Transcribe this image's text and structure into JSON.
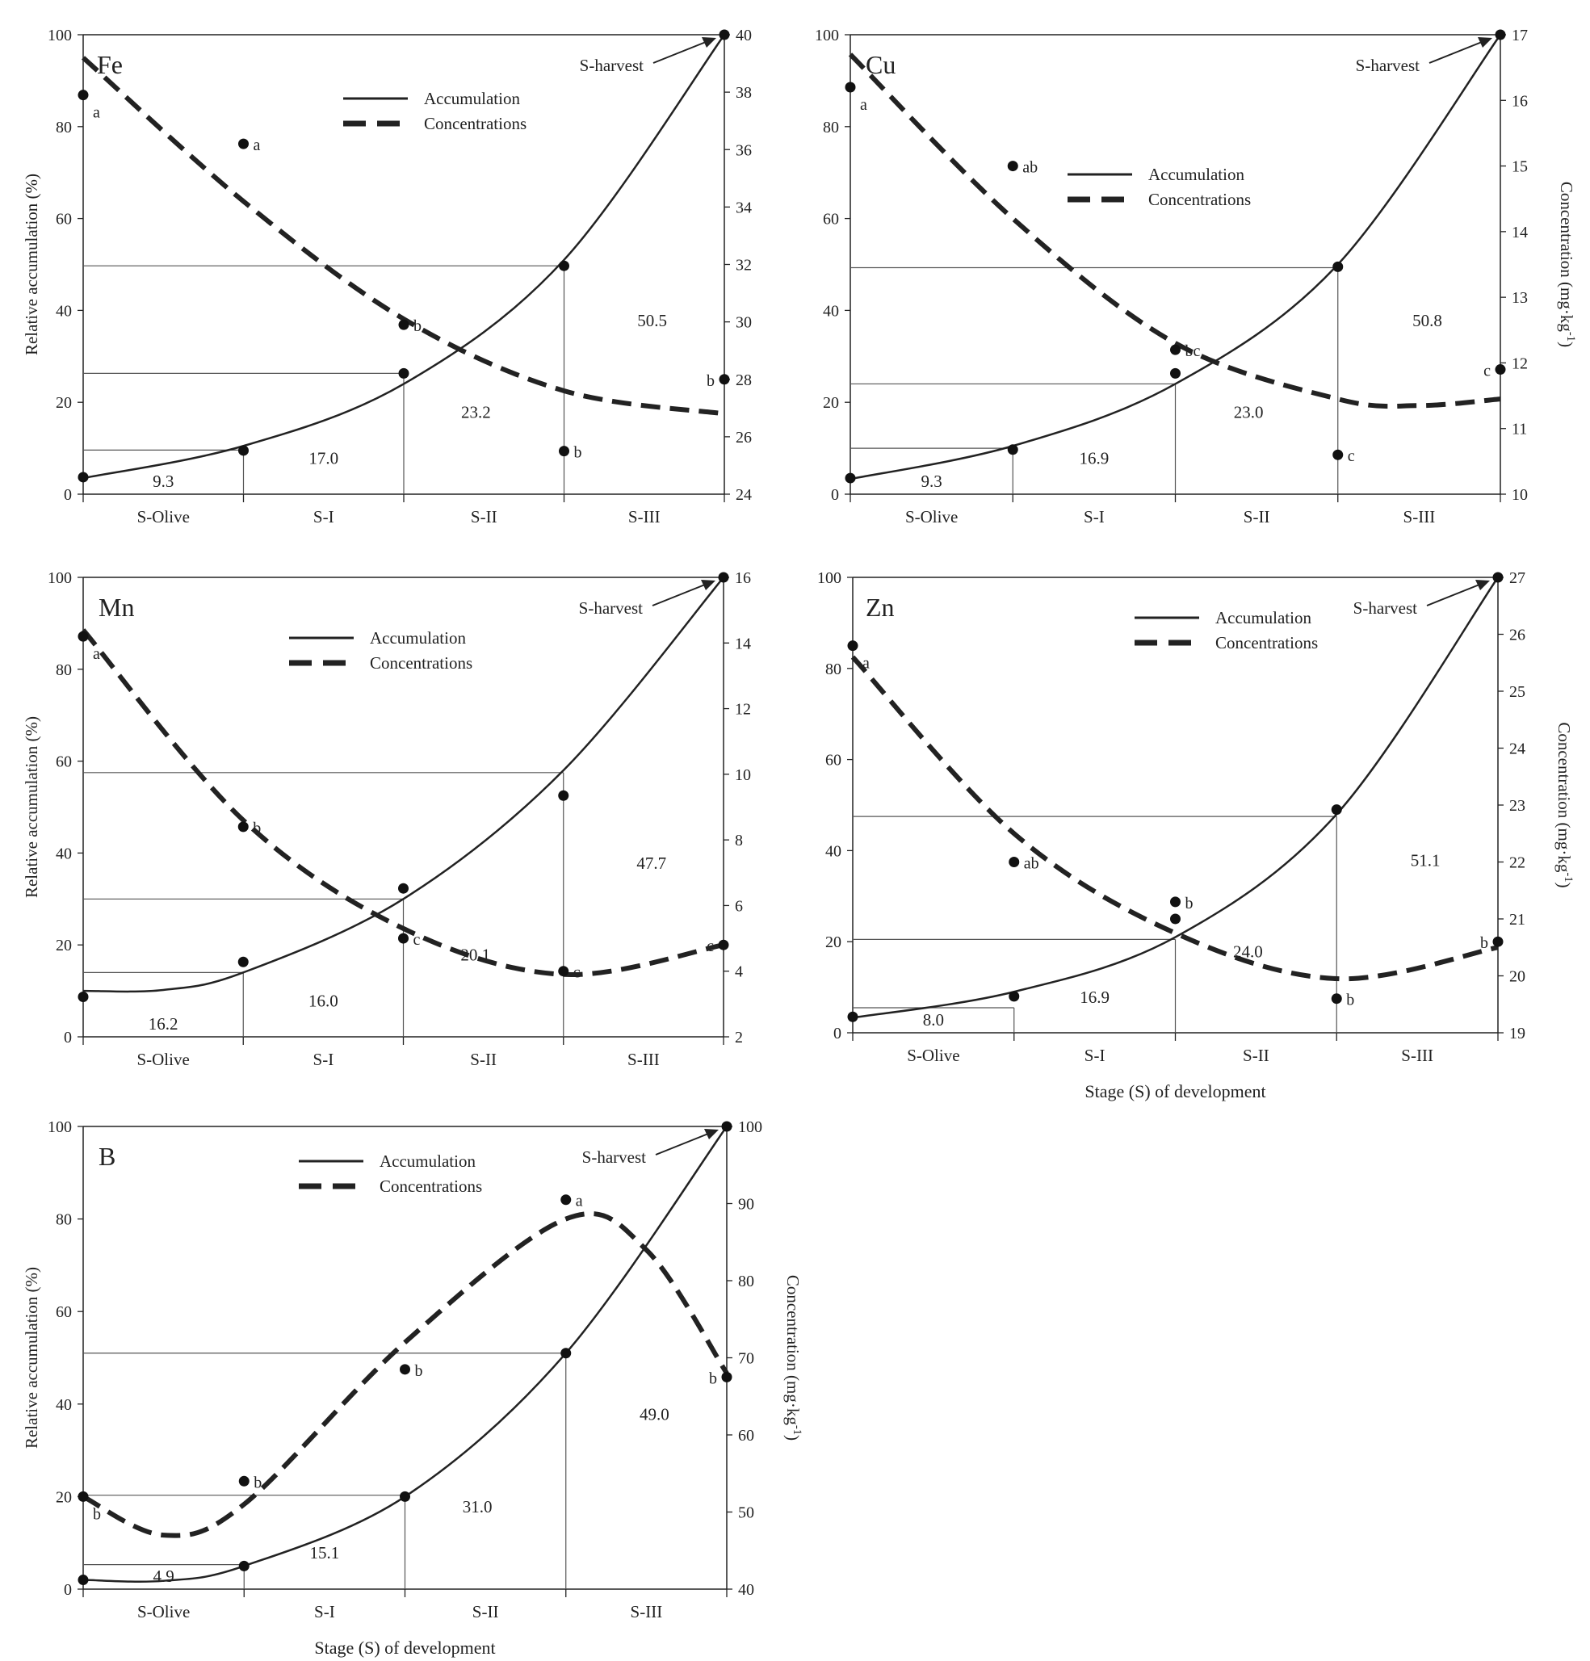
{
  "chart_data": [
    {
      "type": "line",
      "title": "Fe",
      "ylabel": "Relative accumulation (%)",
      "ylabel_right": "",
      "xlabel": "",
      "ylim": [
        0,
        100
      ],
      "ylim_right": [
        24,
        40
      ],
      "yticks": [
        0,
        20,
        40,
        60,
        80,
        100
      ],
      "yticks_right": [
        24,
        26,
        28,
        30,
        32,
        34,
        36,
        38,
        40
      ],
      "x_categories": [
        "S-Olive",
        "S-I",
        "S-II",
        "S-III"
      ],
      "legend": [
        "Accumulation",
        "Concentrations"
      ],
      "annotation": "S-harvest",
      "accumulation_points": [
        3.7,
        9.5,
        26.3,
        49.7,
        100
      ],
      "accumulation_curve": [
        [
          0,
          3.5
        ],
        [
          1,
          10.5
        ],
        [
          2,
          24
        ],
        [
          3,
          51
        ],
        [
          4,
          100
        ]
      ],
      "cumulative_lines": [
        9.6,
        26.3,
        49.7
      ],
      "segment_values": [
        "9.3",
        "17.0",
        "23.2",
        "50.5"
      ],
      "concentration_points": [
        37.9,
        36.2,
        29.9,
        25.5,
        28.0
      ],
      "concentration_letters": [
        "a",
        "a",
        "b",
        "b",
        "b"
      ],
      "concentration_curve": [
        [
          0,
          39.2
        ],
        [
          1,
          34.2
        ],
        [
          2,
          30.1
        ],
        [
          3,
          27.6
        ],
        [
          4,
          26.8
        ]
      ]
    },
    {
      "type": "line",
      "title": "Cu",
      "ylabel": "",
      "ylabel_right": "Concentration (mg·kg-1)",
      "xlabel": "",
      "ylim": [
        0,
        100
      ],
      "ylim_right": [
        10,
        17
      ],
      "yticks": [
        0,
        20,
        40,
        60,
        80,
        100
      ],
      "yticks_right": [
        10,
        11,
        12,
        13,
        14,
        15,
        16,
        17
      ],
      "x_categories": [
        "S-Olive",
        "S-I",
        "S-II",
        "S-III"
      ],
      "legend": [
        "Accumulation",
        "Concentrations"
      ],
      "annotation": "S-harvest",
      "accumulation_points": [
        3.5,
        9.7,
        26.3,
        49.5,
        100
      ],
      "accumulation_curve": [
        [
          0,
          3.3
        ],
        [
          1,
          10.5
        ],
        [
          2,
          24
        ],
        [
          3,
          50
        ],
        [
          4,
          100
        ]
      ],
      "cumulative_lines": [
        10.0,
        24.0,
        49.3
      ],
      "segment_values": [
        "9.3",
        "16.9",
        "23.0",
        "50.8"
      ],
      "concentration_points": [
        16.2,
        15.0,
        12.2,
        10.6,
        11.9
      ],
      "concentration_letters": [
        "a",
        "ab",
        "bc",
        "c",
        "c"
      ],
      "concentration_curve": [
        [
          0,
          16.7
        ],
        [
          1,
          14.2
        ],
        [
          2,
          12.3
        ],
        [
          3,
          11.45
        ],
        [
          3.5,
          11.35
        ],
        [
          4,
          11.45
        ]
      ]
    },
    {
      "type": "line",
      "title": "Mn",
      "ylabel": "Relative accumulation (%)",
      "ylabel_right": "",
      "xlabel": "",
      "ylim": [
        0,
        100
      ],
      "ylim_right": [
        2,
        16
      ],
      "yticks": [
        0,
        20,
        40,
        60,
        80,
        100
      ],
      "yticks_right": [
        2,
        4,
        6,
        8,
        10,
        12,
        14,
        16
      ],
      "x_categories": [
        "S-Olive",
        "S-I",
        "S-II",
        "S-III"
      ],
      "legend": [
        "Accumulation",
        "Concentrations"
      ],
      "annotation": "S-harvest",
      "accumulation_points": [
        8.7,
        16.3,
        32.3,
        52.5,
        100
      ],
      "accumulation_curve": [
        [
          0,
          10
        ],
        [
          0.5,
          10.2
        ],
        [
          1,
          14
        ],
        [
          2,
          30
        ],
        [
          3,
          58
        ],
        [
          4,
          100
        ]
      ],
      "cumulative_lines": [
        14.0,
        30.0,
        57.5
      ],
      "segment_values": [
        "16.2",
        "16.0",
        "20.1",
        "47.7"
      ],
      "concentration_points": [
        14.2,
        8.4,
        5.0,
        4.0,
        4.8
      ],
      "concentration_letters": [
        "a",
        "b",
        "c",
        "c",
        "c"
      ],
      "concentration_curve": [
        [
          0,
          14.4
        ],
        [
          1,
          8.6
        ],
        [
          2,
          5.3
        ],
        [
          3,
          3.9
        ],
        [
          4,
          4.8
        ]
      ]
    },
    {
      "type": "line",
      "title": "Zn",
      "ylabel": "",
      "ylabel_right": "Concentration (mg·kg-1)",
      "xlabel": "Stage (S) of development",
      "ylim": [
        0,
        100
      ],
      "ylim_right": [
        19,
        27
      ],
      "yticks": [
        0,
        20,
        40,
        60,
        80,
        100
      ],
      "yticks_right": [
        19,
        20,
        21,
        22,
        23,
        24,
        25,
        26,
        27
      ],
      "x_categories": [
        "S-Olive",
        "S-I",
        "S-II",
        "S-III"
      ],
      "legend": [
        "Accumulation",
        "Concentrations"
      ],
      "annotation": "S-harvest",
      "accumulation_points": [
        3.5,
        8.0,
        25.0,
        49.0,
        100
      ],
      "accumulation_curve": [
        [
          0,
          3.3
        ],
        [
          1,
          9
        ],
        [
          2,
          21
        ],
        [
          3,
          48
        ],
        [
          4,
          100
        ]
      ],
      "cumulative_lines": [
        5.5,
        20.5,
        47.5
      ],
      "segment_values": [
        "8.0",
        "16.9",
        "24.0",
        "51.1"
      ],
      "concentration_points": [
        25.8,
        22.0,
        21.3,
        19.6,
        20.6
      ],
      "concentration_letters": [
        "a",
        "ab",
        "b",
        "b",
        "b"
      ],
      "concentration_curve": [
        [
          0,
          25.6
        ],
        [
          1,
          22.5
        ],
        [
          2,
          20.75
        ],
        [
          3,
          19.95
        ],
        [
          4,
          20.5
        ]
      ]
    },
    {
      "type": "line",
      "title": "B",
      "ylabel": "Relative accumulation (%)",
      "ylabel_right": "Concentration (mg·kg-1)",
      "xlabel": "Stage (S) of development",
      "ylim": [
        0,
        100
      ],
      "ylim_right": [
        40,
        100
      ],
      "yticks": [
        0,
        20,
        40,
        60,
        80,
        100
      ],
      "yticks_right": [
        40,
        50,
        60,
        70,
        80,
        90,
        100
      ],
      "x_categories": [
        "S-Olive",
        "S-I",
        "S-II",
        "S-III"
      ],
      "legend": [
        "Accumulation",
        "Concentrations"
      ],
      "annotation": "S-harvest",
      "accumulation_points": [
        2.0,
        5.0,
        20.0,
        51.0,
        100
      ],
      "accumulation_curve": [
        [
          0,
          2
        ],
        [
          0.5,
          1.8
        ],
        [
          1,
          5
        ],
        [
          2,
          20
        ],
        [
          3,
          51
        ],
        [
          4,
          100
        ]
      ],
      "cumulative_lines": [
        5.3,
        20.3,
        51.0
      ],
      "segment_values": [
        "4.9",
        "15.1",
        "31.0",
        "49.0"
      ],
      "concentration_points": [
        52.0,
        54.0,
        68.5,
        90.5,
        67.5
      ],
      "concentration_letters": [
        "b",
        "b",
        "b",
        "a",
        "b"
      ],
      "concentration_curve": [
        [
          0,
          52
        ],
        [
          0.5,
          47
        ],
        [
          1,
          51
        ],
        [
          2,
          72
        ],
        [
          3,
          88
        ],
        [
          3.5,
          84
        ],
        [
          4,
          68
        ]
      ]
    }
  ]
}
